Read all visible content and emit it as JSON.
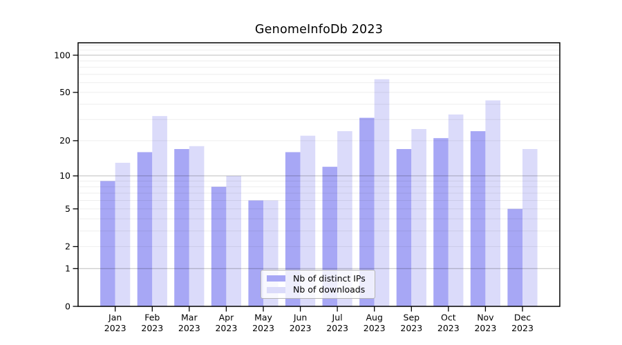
{
  "chart_data": {
    "type": "bar",
    "title": "GenomeInfoDb 2023",
    "categories": [
      "Jan 2023",
      "Feb 2023",
      "Mar 2023",
      "Apr 2023",
      "May 2023",
      "Jun 2023",
      "Jul 2023",
      "Aug 2023",
      "Sep 2023",
      "Oct 2023",
      "Nov 2023",
      "Dec 2023"
    ],
    "series": [
      {
        "name": "Nb of distinct IPs",
        "color": "#a7a7f5",
        "values": [
          9,
          16,
          17,
          8,
          6,
          16,
          12,
          31,
          17,
          21,
          24,
          5
        ]
      },
      {
        "name": "Nb of downloads",
        "color": "#dbdbfa",
        "values": [
          13,
          32,
          18,
          10,
          6,
          22,
          24,
          64,
          25,
          33,
          43,
          17
        ]
      }
    ],
    "yscale": "log1p",
    "ylim": [
      0,
      126
    ],
    "ytick_labels": [
      "0",
      "1",
      "2",
      "5",
      "10",
      "20",
      "50",
      "100"
    ],
    "grid": true,
    "legend_position": "lower center"
  },
  "colors": {
    "background": "#ffffff",
    "axis": "#000000",
    "text": "#000000",
    "major_grid": "rgba(0,0,0,0.26)",
    "minor_grid": "rgba(0,0,0,0.07)"
  }
}
